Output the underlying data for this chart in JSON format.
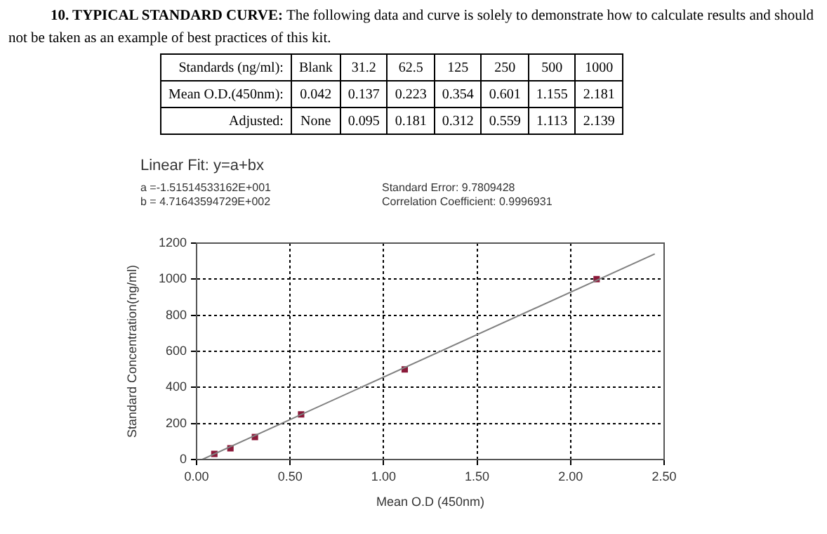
{
  "chart_data": {
    "type": "scatter",
    "title": "10. TYPICAL STANDARD CURVE:",
    "subtitle": "The following data and curve is solely to demonstrate how to calculate results and should not be taken as an example of best practices of this kit.",
    "xlabel": "Mean O.D (450nm)",
    "ylabel": "Standard Concentration(ng/ml)",
    "annotations": [
      "Standards (ng/ml):",
      "Blank",
      "31.2",
      "62.5",
      "125",
      "250",
      "500",
      "1000",
      "Mean O.D.(450nm):",
      "0.042",
      "0.137",
      "0.223",
      "0.354",
      "0.601",
      "1.155",
      "2.181",
      "Adjusted:",
      "None",
      "0.095",
      "0.181",
      "0.312",
      "0.559",
      "1.113",
      "2.139",
      "Linear Fit: y=a+bx",
      "a =-1.51514533162E+001",
      "b = 4.71643594729E+002",
      "Standard Error: 9.7809428",
      "Correlation Coefficient: 0.9996931"
    ],
    "series": [
      {
        "type": "line",
        "color": "#808080",
        "x": [
          0.03,
          2.45
        ],
        "values": [
          0,
          1140
        ],
        "marker": "none"
      },
      {
        "color": "#8b1a3a",
        "x": [
          0.095,
          0.181,
          0.312,
          0.559,
          1.113,
          2.139
        ],
        "values": [
          31.2,
          62.5,
          125,
          250,
          500,
          1000
        ],
        "marker": "square"
      }
    ],
    "xlim": [
      0,
      2.5
    ],
    "xticks": [
      {
        "value": 0,
        "label": "0.00"
      },
      {
        "value": 0.5,
        "label": "0.50"
      },
      {
        "value": 1,
        "label": "1.00"
      },
      {
        "value": 1.5,
        "label": "1.50"
      },
      {
        "value": 2,
        "label": "2.00"
      },
      {
        "value": 2.5,
        "label": "2.50"
      }
    ],
    "ylim": [
      0,
      1200
    ],
    "yticks": [
      0,
      200,
      400,
      600,
      800,
      1000,
      1200
    ],
    "grid": true,
    "legend": false
  }
}
